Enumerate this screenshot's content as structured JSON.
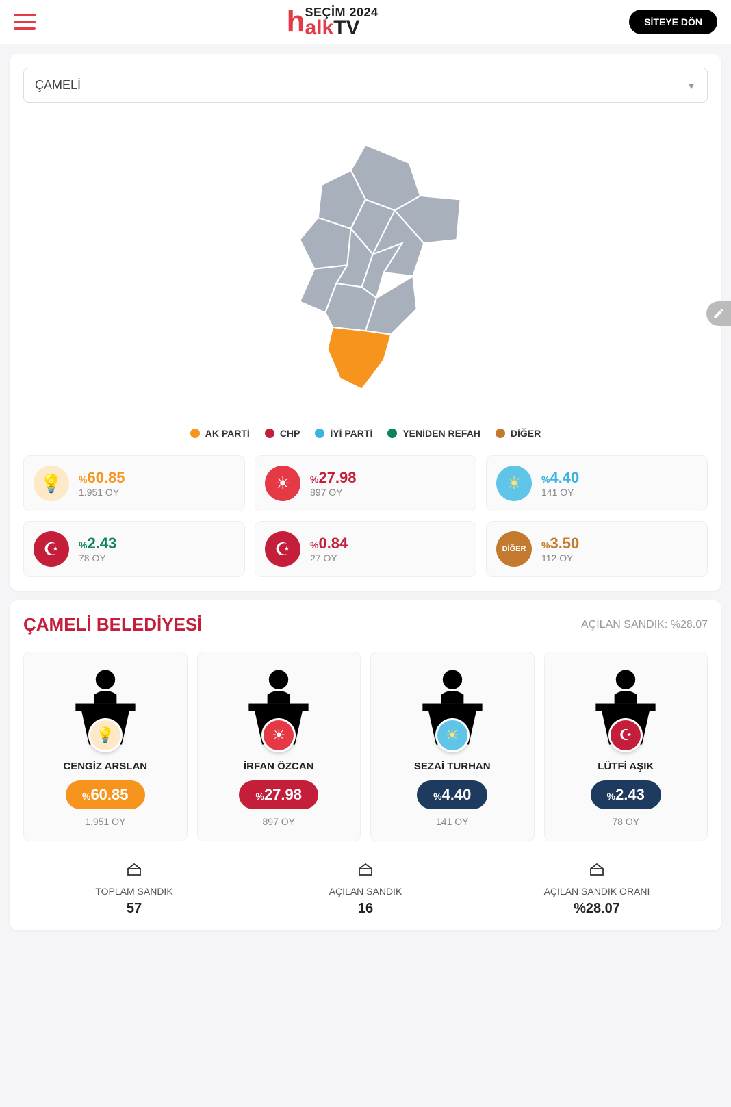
{
  "header": {
    "logo_top": "SEÇİM 2024",
    "logo_alk": "alk",
    "logo_tv": "TV",
    "site_button": "SİTEYE DÖN"
  },
  "dropdown": {
    "selected": "ÇAMELİ"
  },
  "map": {
    "fill_default": "#a8b0bb",
    "fill_highlight": "#f7941d",
    "stroke": "#ffffff"
  },
  "legend": [
    {
      "label": "AK PARTİ",
      "color": "#f7941d"
    },
    {
      "label": "CHP",
      "color": "#c41e3a"
    },
    {
      "label": "İYİ PARTİ",
      "color": "#3db2e3"
    },
    {
      "label": "YENİDEN REFAH",
      "color": "#0b8457"
    },
    {
      "label": "DİĞER",
      "color": "#c47a2e"
    }
  ],
  "parties": [
    {
      "pct": "60.85",
      "votes": "1.951 OY",
      "color": "#f7941d",
      "icon_bg": "#fde9c8",
      "icon_fg": "#f7941d",
      "symbol": "💡"
    },
    {
      "pct": "27.98",
      "votes": "897 OY",
      "color": "#c41e3a",
      "icon_bg": "#e63946",
      "icon_fg": "#ffffff",
      "symbol": "☀"
    },
    {
      "pct": "4.40",
      "votes": "141 OY",
      "color": "#3db2e3",
      "icon_bg": "#5fc4e8",
      "icon_fg": "#ffe36e",
      "symbol": "☀"
    },
    {
      "pct": "2.43",
      "votes": "78 OY",
      "color": "#0b8457",
      "icon_bg": "#c41e3a",
      "icon_fg": "#ffffff",
      "symbol": "☪"
    },
    {
      "pct": "0.84",
      "votes": "27 OY",
      "color": "#c41e3a",
      "icon_bg": "#c41e3a",
      "icon_fg": "#ffffff",
      "symbol": "☪"
    },
    {
      "pct": "3.50",
      "votes": "112 OY",
      "color": "#c47a2e",
      "icon_bg": "#c47a2e",
      "icon_fg": "#ffffff",
      "symbol": "DİĞER"
    }
  ],
  "municipality": {
    "title": "ÇAMELİ BELEDİYESİ",
    "opened_label": "AÇILAN SANDIK: %28.07"
  },
  "candidates": [
    {
      "name": "CENGİZ ARSLAN",
      "pct": "60.85",
      "votes": "1.951 OY",
      "pill_color": "#f7941d",
      "badge_bg": "#fde9c8",
      "badge_fg": "#f7941d",
      "badge_symbol": "💡"
    },
    {
      "name": "İRFAN ÖZCAN",
      "pct": "27.98",
      "votes": "897 OY",
      "pill_color": "#c41e3a",
      "badge_bg": "#e63946",
      "badge_fg": "#ffffff",
      "badge_symbol": "☀"
    },
    {
      "name": "SEZAİ TURHAN",
      "pct": "4.40",
      "votes": "141 OY",
      "pill_color": "#1e3a5f",
      "badge_bg": "#5fc4e8",
      "badge_fg": "#ffe36e",
      "badge_symbol": "☀"
    },
    {
      "name": "LÜTFİ AŞIK",
      "pct": "2.43",
      "votes": "78 OY",
      "pill_color": "#1e3a5f",
      "badge_bg": "#c41e3a",
      "badge_fg": "#ffffff",
      "badge_symbol": "☪"
    }
  ],
  "stats": [
    {
      "label": "TOPLAM SANDIK",
      "value": "57"
    },
    {
      "label": "AÇILAN SANDIK",
      "value": "16"
    },
    {
      "label": "AÇILAN SANDIK ORANI",
      "value": "%28.07"
    }
  ]
}
